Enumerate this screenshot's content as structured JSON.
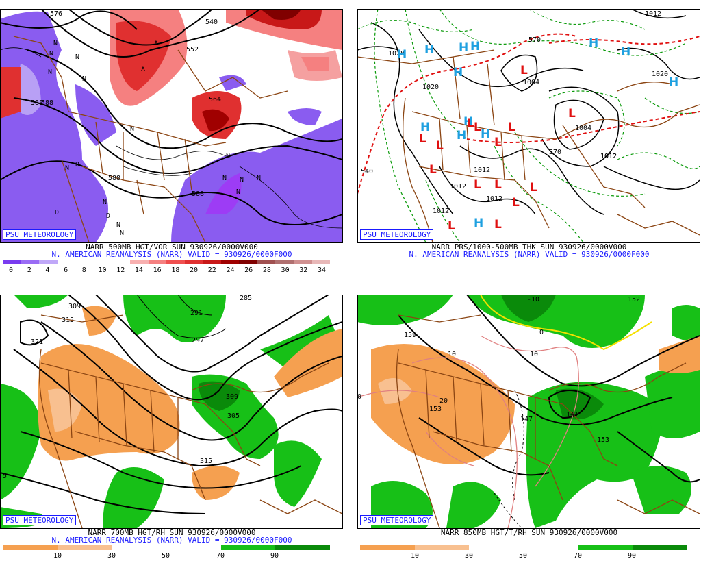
{
  "branding": {
    "label": "PSU METEOROLOGY"
  },
  "colors": {
    "purple": "#8a5cf0",
    "purple_light": "#b8a0f5",
    "red_dark": "#8b0000",
    "red": "#e03030",
    "red_light": "#f5a0a0",
    "green": "#17c017",
    "green_dark": "#0a8a0a",
    "orange": "#f5a050",
    "orange_light": "#f8c090",
    "border_brown": "#8b4513",
    "high_blue": "#1ea0e0",
    "low_red": "#e01010",
    "thk_red": "#e01010",
    "thk_green": "#0a9a0a"
  },
  "panels": {
    "tl": {
      "caption1": "NARR 500MB HGT/VOR SUN 930926/0000V000",
      "caption2": "N. AMERICAN REANALYSIS (NARR) VALID = 930926/0000F000",
      "colorbar_ticks": [
        "0",
        "2",
        "4",
        "6",
        "8",
        "10",
        "12",
        "14",
        "16",
        "18",
        "20",
        "22",
        "24",
        "26",
        "28",
        "30",
        "32",
        "34"
      ],
      "colorbar_colors": [
        "#7a3cf0",
        "#9a6cf5",
        "#c0a8f8",
        "#ffffff",
        "#ffffff",
        "#ffffff",
        "#ffffff",
        "#f8b0b0",
        "#f58080",
        "#f05050",
        "#e03030",
        "#c81818",
        "#a00000",
        "#800000",
        "#a05050",
        "#b07070",
        "#d09090",
        "#e8b8b8"
      ],
      "contour_labels": [
        "588",
        "576",
        "540",
        "552",
        "564",
        "588",
        "588",
        "588",
        "N",
        "N",
        "N",
        "N",
        "N",
        "N",
        "N",
        "N",
        "N",
        "N",
        "N",
        "N",
        "N",
        "N",
        "N",
        "D",
        "D",
        "D",
        "X",
        "X"
      ]
    },
    "tr": {
      "caption1": "NARR PRS/1000-500MB THK SUN 930926/0000V000",
      "caption2": "N. AMERICAN REANALYSIS (NARR) VALID = 930926/0000F000",
      "isobar_labels": [
        "1028",
        "1020",
        "1004",
        "1004",
        "1012",
        "1012",
        "1012",
        "1012",
        "1012",
        "1012",
        "1020",
        "1012"
      ],
      "thickness_labels": [
        "540",
        "570",
        "570"
      ],
      "highs": [
        "H",
        "H",
        "H",
        "H",
        "H",
        "H",
        "H",
        "H",
        "H",
        "H",
        "H",
        "H",
        "H"
      ],
      "lows": [
        "L",
        "L",
        "L",
        "L",
        "L",
        "L",
        "L",
        "L",
        "L",
        "L",
        "L",
        "L",
        "L",
        "L",
        "L"
      ]
    },
    "bl": {
      "caption1": "NARR 700MB HGT/RH SUN 930926/0000V000",
      "caption2": "N. AMERICAN REANALYSIS (NARR) VALID = 930926/0000F000",
      "colorbar_ticks": [
        "10",
        "30",
        "50",
        "70",
        "90"
      ],
      "contour_labels": [
        "309",
        "315",
        "321",
        "285",
        "291",
        "297",
        "309",
        "305",
        "315",
        "5"
      ]
    },
    "br": {
      "caption1": "NARR 850MB HGT/T/RH SUN 930926/0000V000",
      "colorbar_ticks": [
        "10",
        "30",
        "50",
        "70",
        "90"
      ],
      "contour_labels": [
        "159",
        "153",
        "147",
        "141",
        "153",
        "152"
      ],
      "temp_labels": [
        "-10",
        "0",
        "10",
        "10",
        "20",
        "0"
      ]
    }
  }
}
